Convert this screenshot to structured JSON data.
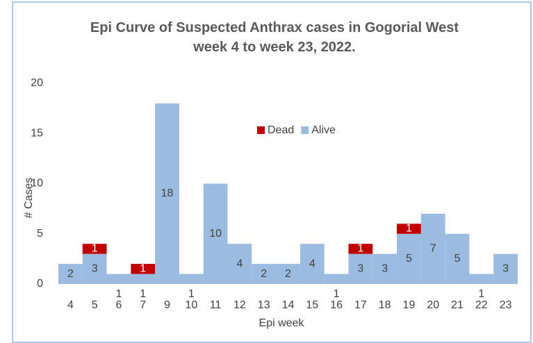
{
  "chart_data": {
    "type": "stacked_bar",
    "title": "Epi Curve of Suspected Anthrax cases in Gogorial West week 4 to week 23, 2022.",
    "xlabel": "Epi week",
    "ylabel": "# Cases",
    "categories": [
      "4",
      "5",
      "6",
      "7",
      "9",
      "10",
      "11",
      "12",
      "13",
      "14",
      "15",
      "16",
      "17",
      "18",
      "19",
      "20",
      "21",
      "22",
      "23"
    ],
    "series": [
      {
        "name": "Alive",
        "color": "#9bbbe0",
        "values": [
          2,
          3,
          1,
          1,
          18,
          1,
          10,
          4,
          2,
          2,
          4,
          1,
          3,
          3,
          5,
          7,
          5,
          1,
          3
        ]
      },
      {
        "name": "Dead",
        "color": "#c00000",
        "values": [
          null,
          1,
          null,
          1,
          null,
          null,
          null,
          null,
          null,
          null,
          null,
          null,
          1,
          null,
          1,
          null,
          null,
          null,
          null
        ]
      }
    ],
    "legend_order": [
      "Dead",
      "Alive"
    ],
    "ylim": [
      0,
      20
    ],
    "yticks": [
      0,
      5,
      10,
      15,
      20
    ]
  }
}
